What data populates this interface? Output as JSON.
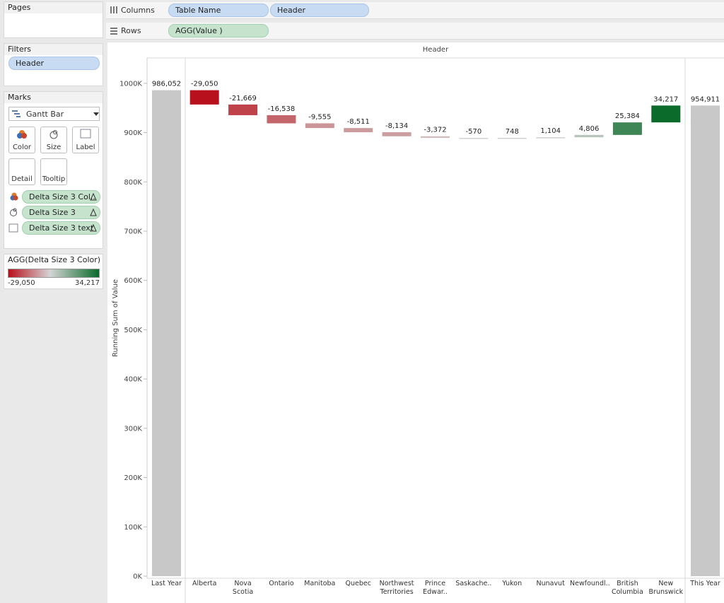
{
  "pages": {
    "title": "Pages"
  },
  "columns_shelf": {
    "label": "Columns",
    "pills": [
      "Table Name",
      "Header"
    ]
  },
  "rows_shelf": {
    "label": "Rows",
    "pills": [
      "AGG(Value )"
    ]
  },
  "filters": {
    "title": "Filters",
    "pills": [
      "Header"
    ]
  },
  "marks": {
    "title": "Marks",
    "mark_type": "Gantt Bar",
    "buttons": [
      "Color",
      "Size",
      "Label",
      "Detail",
      "Tooltip"
    ],
    "pills": [
      "Delta Size 3 Col..",
      "Delta Size 3",
      "Delta Size 3 text"
    ]
  },
  "chart_data": {
    "type": "waterfall",
    "pane_header": "Header",
    "y_label": "Running Sum of Value",
    "start_category": "Last Year",
    "start_value": 986052,
    "start_value_label": "986,052",
    "categories": [
      "Alberta",
      "Nova Scotia",
      "Ontario",
      "Manitoba",
      "Quebec",
      "Northwest Territories",
      "Prince Edwar..",
      "Saskache..",
      "Yukon",
      "Nunavut",
      "Newfoundl..",
      "British Columbia",
      "New Brunswick"
    ],
    "values": [
      -29050,
      -21669,
      -16538,
      -9555,
      -8511,
      -8134,
      -3372,
      -570,
      748,
      1104,
      4806,
      25384,
      34217
    ],
    "value_labels": [
      "-29,050",
      "-21,669",
      "-16,538",
      "-9,555",
      "-8,511",
      "-8,134",
      "-3,372",
      "-570",
      "748",
      "1,104",
      "4,806",
      "25,384",
      "34,217"
    ],
    "end_category": "This Year",
    "end_value": 954911,
    "end_value_label": "954,911",
    "total_color": "#c8c8c8",
    "ylim": [
      0,
      1050000
    ],
    "yticks": [
      {
        "value": 0,
        "label": "0K"
      },
      {
        "value": 100000,
        "label": "100K"
      },
      {
        "value": 200000,
        "label": "200K"
      },
      {
        "value": 300000,
        "label": "300K"
      },
      {
        "value": 400000,
        "label": "400K"
      },
      {
        "value": 500000,
        "label": "500K"
      },
      {
        "value": 600000,
        "label": "600K"
      },
      {
        "value": 700000,
        "label": "700K"
      },
      {
        "value": 800000,
        "label": "800K"
      },
      {
        "value": 900000,
        "label": "900K"
      },
      {
        "value": 1000000,
        "label": "1000K"
      }
    ],
    "color_legend": {
      "title": "AGG(Delta Size 3 Color)",
      "min": {
        "value": -29050,
        "label": "-29,050"
      },
      "max": {
        "value": 34217,
        "label": "34,217"
      },
      "colors": [
        "#b8101c",
        "#d4d4d4",
        "#0a6b2a"
      ]
    }
  }
}
